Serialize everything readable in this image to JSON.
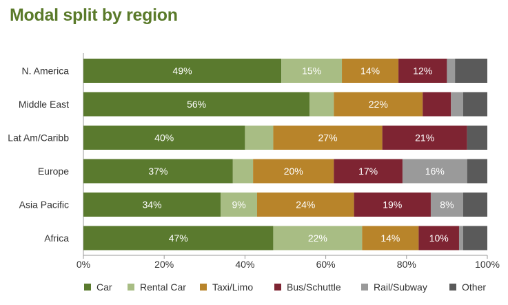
{
  "chart_data": {
    "type": "bar",
    "orientation": "horizontal",
    "stacked": true,
    "title": "Modal split by region",
    "categories": [
      "N. America",
      "Middle East",
      "Lat Am/Caribb",
      "Europe",
      "Asia Pacific",
      "Africa"
    ],
    "series": [
      {
        "name": "Car",
        "color": "#5a7a2e",
        "values": [
          49,
          56,
          40,
          37,
          34,
          47
        ],
        "labels": [
          "49%",
          "56%",
          "40%",
          "37%",
          "34%",
          "47%"
        ]
      },
      {
        "name": "Rental Car",
        "color": "#a8bd84",
        "values": [
          15,
          6,
          7,
          5,
          9,
          22
        ],
        "labels": [
          "15%",
          "",
          "",
          "",
          "9%",
          "22%"
        ]
      },
      {
        "name": "Taxi/Limo",
        "color": "#b8842a",
        "values": [
          14,
          22,
          27,
          20,
          24,
          14
        ],
        "labels": [
          "14%",
          "22%",
          "27%",
          "20%",
          "24%",
          "14%"
        ]
      },
      {
        "name": "Bus/Schuttle",
        "color": "#7e2432",
        "values": [
          12,
          7,
          21,
          17,
          19,
          10
        ],
        "labels": [
          "12%",
          "",
          "21%",
          "17%",
          "19%",
          "10%"
        ]
      },
      {
        "name": "Rail/Subway",
        "color": "#9a9a9a",
        "values": [
          2,
          3,
          0,
          16,
          8,
          1
        ],
        "labels": [
          "",
          "",
          "",
          "16%",
          "8%",
          ""
        ]
      },
      {
        "name": "Other",
        "color": "#5a5a5a",
        "values": [
          8,
          6,
          5,
          5,
          6,
          6
        ],
        "labels": [
          "",
          "",
          "",
          "",
          "",
          ""
        ]
      }
    ],
    "xlim": [
      0,
      100
    ],
    "xticks": [
      0,
      20,
      40,
      60,
      80,
      100
    ],
    "xtick_labels": [
      "0%",
      "20%",
      "40%",
      "60%",
      "80%",
      "100%"
    ],
    "xlabel": "",
    "ylabel": "",
    "grid": false,
    "legend_position": "bottom"
  }
}
